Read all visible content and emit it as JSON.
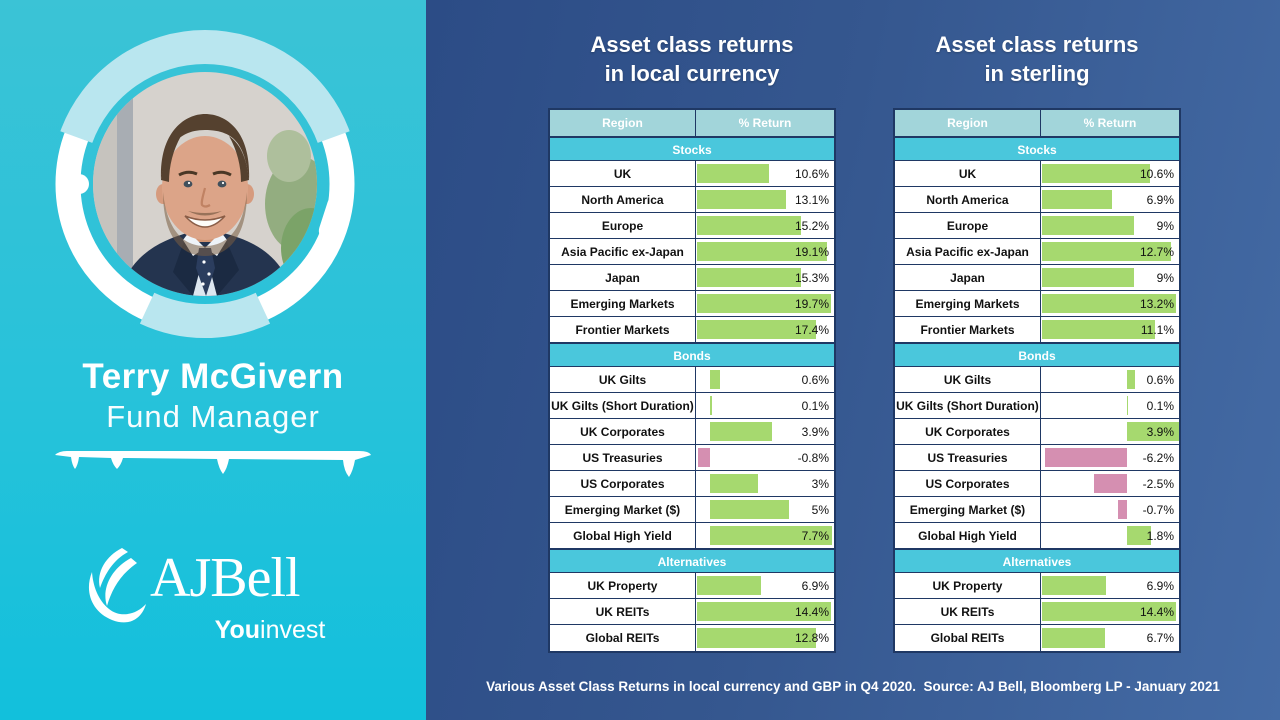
{
  "left_panel": {
    "name": "Terry McGivern",
    "role": "Fund Manager",
    "logo": {
      "brand": "AJBell",
      "sub_bold": "You",
      "sub_rest": "invest"
    }
  },
  "caption": "Various Asset Class Returns in local currency and GBP in Q4 2020.  Source: AJ Bell, Bloomberg LP - January 2021",
  "colors": {
    "left_panel_bg": "#2fc3d9",
    "right_panel_bg_dark": "#2c4c86",
    "right_panel_bg_light": "#446ba5",
    "table_border": "#1f3864",
    "column_header_bg": "#a2d5da",
    "section_header_bg": "#4ac7dc",
    "positive_bar": "#a6d96f",
    "negative_bar": "#d58fb1"
  },
  "chart_data": [
    {
      "type": "table",
      "title_line1": "Asset class returns",
      "title_line2": "in local currency",
      "columns": [
        "Region",
        "% Return"
      ],
      "sections": [
        {
          "name": "Stocks",
          "rows": [
            {
              "region": "UK",
              "value": 10.6,
              "label": "10.6%"
            },
            {
              "region": "North America",
              "value": 13.1,
              "label": "13.1%"
            },
            {
              "region": "Europe",
              "value": 15.2,
              "label": "15.2%"
            },
            {
              "region": "Asia Pacific ex-Japan",
              "value": 19.1,
              "label": "19.1%"
            },
            {
              "region": "Japan",
              "value": 15.3,
              "label": "15.3%"
            },
            {
              "region": "Emerging Markets",
              "value": 19.7,
              "label": "19.7%"
            },
            {
              "region": "Frontier Markets",
              "value": 17.4,
              "label": "17.4%"
            }
          ]
        },
        {
          "name": "Bonds",
          "rows": [
            {
              "region": "UK Gilts",
              "value": 0.6,
              "label": "0.6%"
            },
            {
              "region": "UK Gilts (Short Duration)",
              "value": 0.1,
              "label": "0.1%"
            },
            {
              "region": "UK Corporates",
              "value": 3.9,
              "label": "3.9%"
            },
            {
              "region": "US Treasuries",
              "value": -0.8,
              "label": "-0.8%"
            },
            {
              "region": "US Corporates",
              "value": 3,
              "label": "3%"
            },
            {
              "region": "Emerging Market ($)",
              "value": 5,
              "label": "5%"
            },
            {
              "region": "Global High Yield",
              "value": 7.7,
              "label": "7.7%"
            }
          ]
        },
        {
          "name": "Alternatives",
          "rows": [
            {
              "region": "UK Property",
              "value": 6.9,
              "label": "6.9%"
            },
            {
              "region": "UK REITs",
              "value": 14.4,
              "label": "14.4%"
            },
            {
              "region": "Global REITs",
              "value": 12.8,
              "label": "12.8%"
            }
          ]
        }
      ]
    },
    {
      "type": "table",
      "title_line1": "Asset class returns",
      "title_line2": "in sterling",
      "columns": [
        "Region",
        "% Return"
      ],
      "sections": [
        {
          "name": "Stocks",
          "rows": [
            {
              "region": "UK",
              "value": 10.6,
              "label": "10.6%"
            },
            {
              "region": "North America",
              "value": 6.9,
              "label": "6.9%"
            },
            {
              "region": "Europe",
              "value": 9,
              "label": "9%"
            },
            {
              "region": "Asia Pacific ex-Japan",
              "value": 12.7,
              "label": "12.7%"
            },
            {
              "region": "Japan",
              "value": 9,
              "label": "9%"
            },
            {
              "region": "Emerging Markets",
              "value": 13.2,
              "label": "13.2%"
            },
            {
              "region": "Frontier Markets",
              "value": 11.1,
              "label": "11.1%"
            }
          ]
        },
        {
          "name": "Bonds",
          "rows": [
            {
              "region": "UK Gilts",
              "value": 0.6,
              "label": "0.6%"
            },
            {
              "region": "UK Gilts (Short Duration)",
              "value": 0.1,
              "label": "0.1%"
            },
            {
              "region": "UK Corporates",
              "value": 3.9,
              "label": "3.9%"
            },
            {
              "region": "US Treasuries",
              "value": -6.2,
              "label": "-6.2%"
            },
            {
              "region": "US Corporates",
              "value": -2.5,
              "label": "-2.5%"
            },
            {
              "region": "Emerging Market ($)",
              "value": -0.7,
              "label": "-0.7%"
            },
            {
              "region": "Global High Yield",
              "value": 1.8,
              "label": "1.8%"
            }
          ]
        },
        {
          "name": "Alternatives",
          "rows": [
            {
              "region": "UK Property",
              "value": 6.9,
              "label": "6.9%"
            },
            {
              "region": "UK REITs",
              "value": 14.4,
              "label": "14.4%"
            },
            {
              "region": "Global REITs",
              "value": 6.7,
              "label": "6.7%"
            }
          ]
        }
      ]
    }
  ]
}
